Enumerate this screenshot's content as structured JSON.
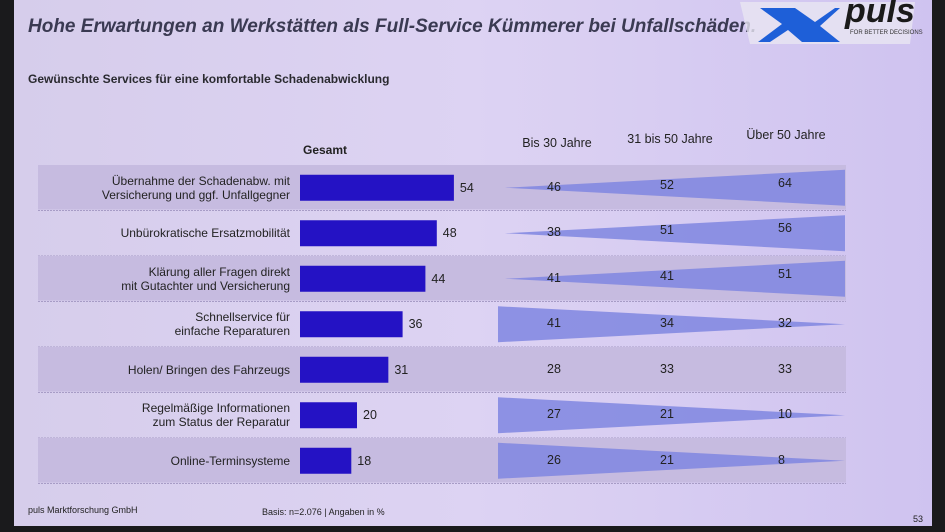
{
  "title": "Hohe Erwartungen an Werkstätten als Full-Service Kümmerer bei Unfallschäden.",
  "subtitle": "Gewünschte Services für eine komfortable Schadenabwicklung",
  "logo": {
    "text": "puls",
    "tagline": "FOR BETTER DECISIONS"
  },
  "footer": {
    "company": "puls Marktforschung GmbH",
    "basis": "Basis: n=2.076 | Angaben in %",
    "page": "53"
  },
  "colors": {
    "bar": "#2412c4",
    "wedge": "#7f86e0",
    "row_shade": "#c6bbe0"
  },
  "chart_data": {
    "type": "bar",
    "unit": "%",
    "categories": [
      "Übernahme der Schadenabw. mit\nVersicherung und ggf. Unfallgegner",
      "Unbürokratische Ersatzmobilität",
      "Klärung aller Fragen direkt\nmit Gutachter und Versicherung",
      "Schnellservice für\neinfache Reparaturen",
      "Holen/ Bringen des Fahrzeugs",
      "Regelmäßige Informationen\nzum Status der Reparatur",
      "Online-Terminsysteme"
    ],
    "series": [
      {
        "name": "Gesamt",
        "values": [
          54,
          48,
          44,
          36,
          31,
          20,
          18
        ]
      },
      {
        "name": "Bis 30 Jahre",
        "values": [
          46,
          38,
          41,
          41,
          28,
          27,
          26
        ]
      },
      {
        "name": "31 bis 50 Jahre",
        "values": [
          52,
          51,
          41,
          34,
          33,
          21,
          21
        ]
      },
      {
        "name": "Über 50 Jahre",
        "values": [
          64,
          56,
          51,
          32,
          33,
          10,
          8
        ]
      }
    ],
    "trend": [
      "up",
      "up",
      "up",
      "down",
      "none",
      "down",
      "down"
    ]
  }
}
